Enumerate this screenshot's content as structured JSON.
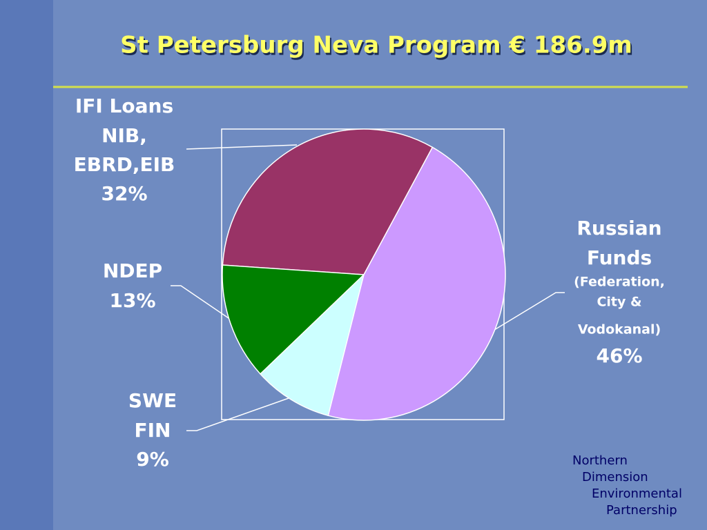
{
  "chart_data": {
    "type": "pie",
    "title": "St Petersburg Neva Program € 186.9m",
    "categories": [
      [
        "IFI Loans",
        "NIB,",
        "EBRD,EIB"
      ],
      [
        "NDEP"
      ],
      [
        "SWE",
        "FIN"
      ],
      [
        "Russian",
        "Funds",
        "(Federation,",
        "City &",
        "Vodokanal)"
      ]
    ],
    "values": [
      32,
      13,
      9,
      46
    ],
    "value_labels": [
      "32%",
      "13%",
      "9%",
      "46%"
    ],
    "colors": [
      "#993366",
      "#008000",
      "#ccffff",
      "#cc99ff"
    ]
  },
  "footer": [
    "Northern",
    "Dimension",
    "Environmental",
    "Partnership"
  ]
}
